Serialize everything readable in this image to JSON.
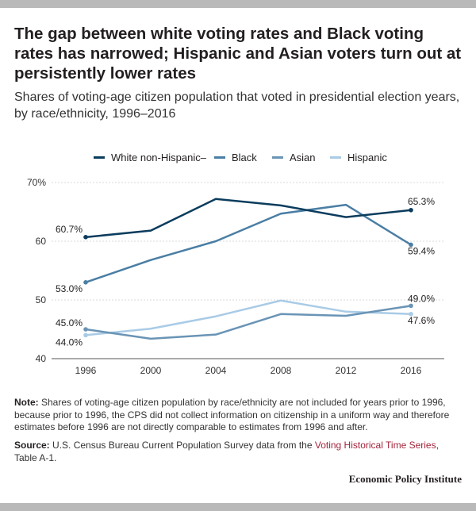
{
  "title": "The gap between white voting rates and Black voting rates has narrowed; Hispanic and Asian voters turn out at persistently lower rates",
  "subtitle": "Shares of voting-age citizen population that voted in presidential election years, by race/ethnicity, 1996–2016",
  "note": {
    "label": "Note:",
    "text": " Shares of voting-age citizen population by race/ethnicity are not included for years prior to 1996, because prior to 1996, the CPS did not collect information on citizenship in a uniform way and therefore estimates before 1996 are not directly comparable to estimates from 1996 and after."
  },
  "source": {
    "label": "Source:",
    "text_before": " U.S. Census Bureau Current Population Survey data from the ",
    "link": "Voting Historical Time Series",
    "text_after": ", Table A-1."
  },
  "brand": "Economic Policy Institute",
  "chart_data": {
    "type": "line",
    "x": [
      1996,
      2000,
      2004,
      2008,
      2012,
      2016
    ],
    "xticks": [
      "1996",
      "2000",
      "2004",
      "2008",
      "2012",
      "2016"
    ],
    "ylim": [
      40,
      70
    ],
    "yticks": [
      {
        "value": 70,
        "label": "70%"
      },
      {
        "value": 60,
        "label": "60"
      },
      {
        "value": 50,
        "label": "50"
      },
      {
        "value": 40,
        "label": "40"
      }
    ],
    "grid": true,
    "legend_position": "top",
    "series": [
      {
        "name": "White non-Hispanic–",
        "color": "#0b3c5d",
        "values": [
          60.7,
          61.8,
          67.2,
          66.1,
          64.1,
          65.3
        ],
        "labels": {
          "first": "60.7%",
          "last": "65.3%"
        }
      },
      {
        "name": "Black",
        "color": "#4a7ea4",
        "values": [
          53.0,
          56.8,
          60.0,
          64.7,
          66.2,
          59.4
        ],
        "labels": {
          "first": "53.0%",
          "last": "59.4%"
        }
      },
      {
        "name": "Asian",
        "color": "#6a94b5",
        "values": [
          45.0,
          43.4,
          44.1,
          47.6,
          47.3,
          49.0
        ],
        "labels": {
          "first": "45.0%",
          "last": "49.0%"
        }
      },
      {
        "name": "Hispanic",
        "color": "#a9cbe6",
        "values": [
          44.0,
          45.1,
          47.2,
          49.9,
          48.0,
          47.6
        ],
        "labels": {
          "first": "44.0%",
          "last": "47.6%"
        }
      }
    ]
  }
}
